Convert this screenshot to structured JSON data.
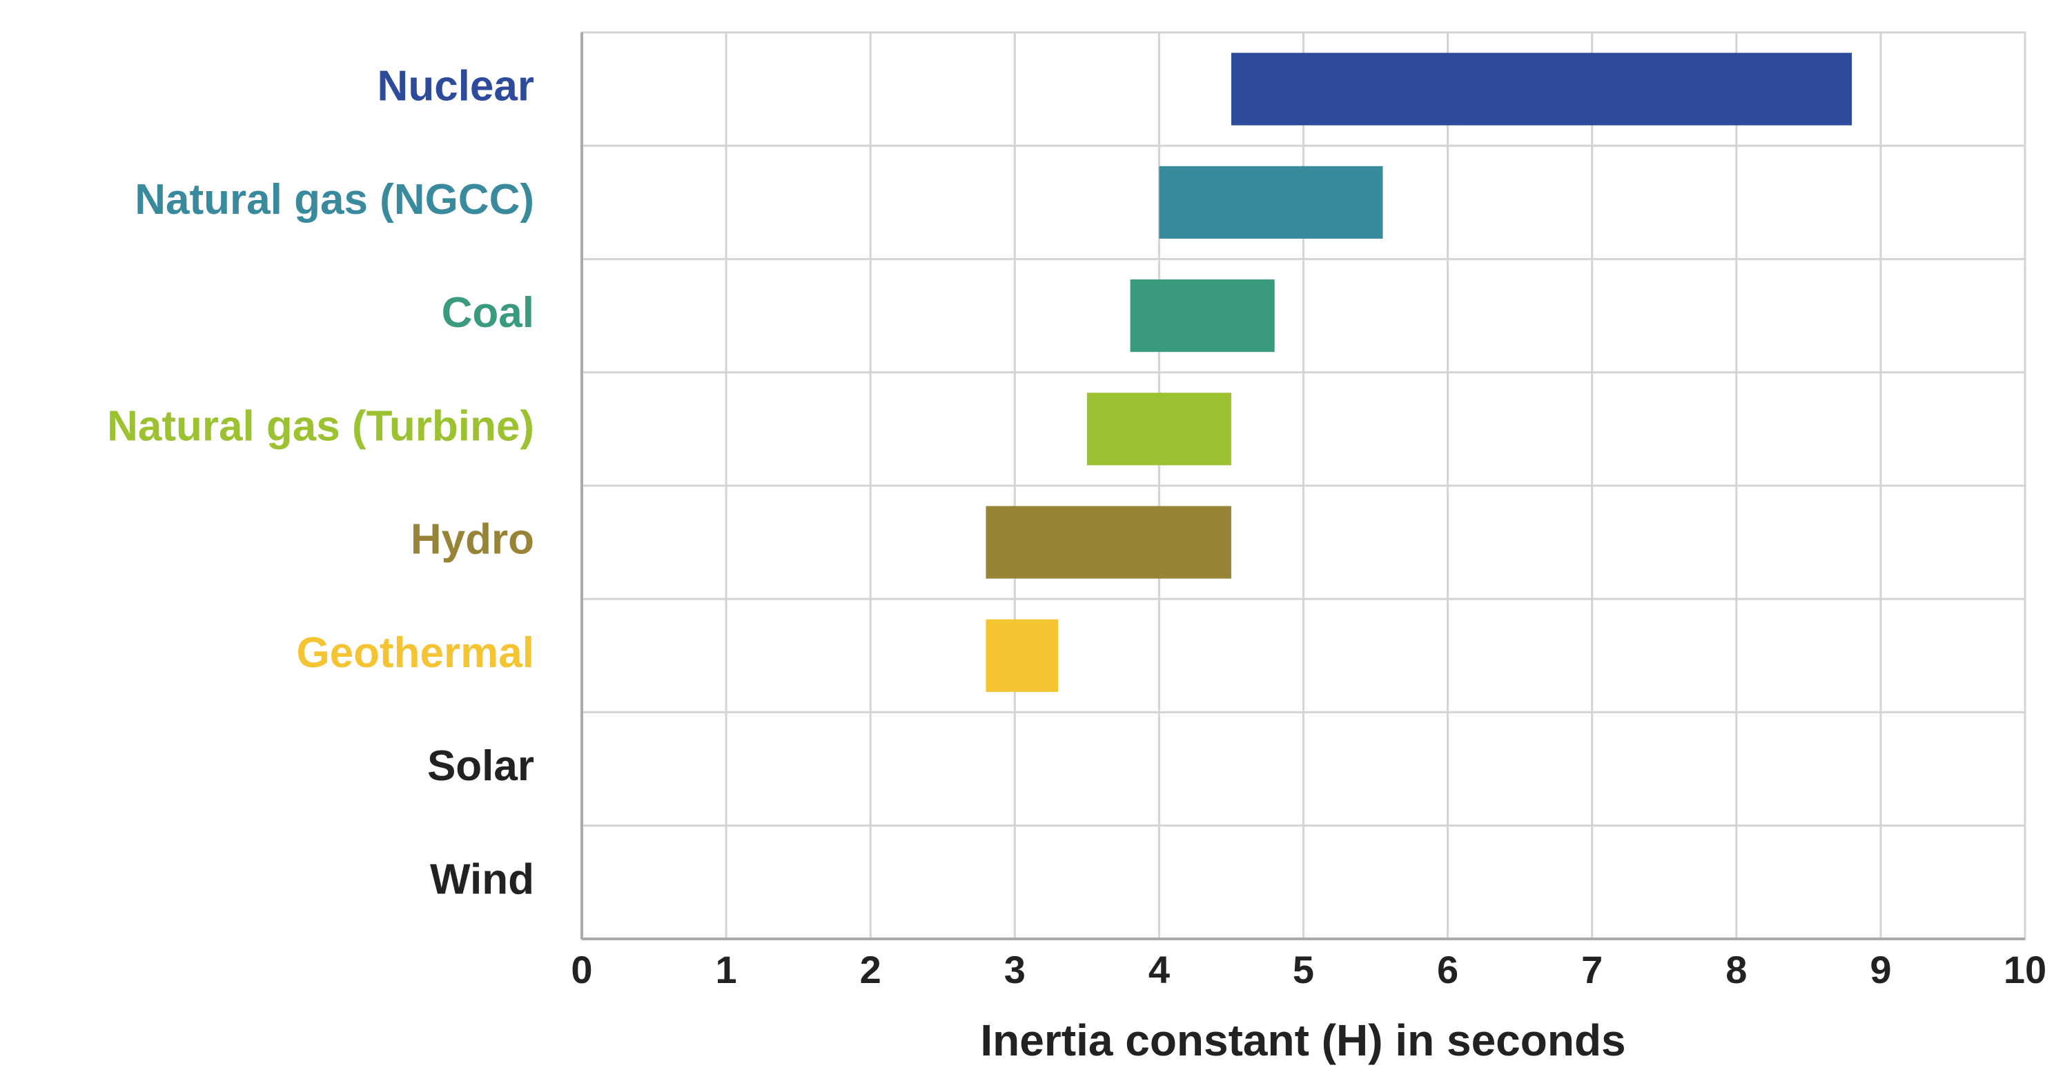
{
  "chart_data": {
    "type": "bar",
    "orientation": "horizontal",
    "x_label": "Inertia constant (H) in seconds",
    "categories": [
      "Nuclear",
      "Natural gas (NGCC)",
      "Coal",
      "Natural gas (Turbine)",
      "Hydro",
      "Geothermal",
      "Solar",
      "Wind"
    ],
    "values": [
      [
        4.5,
        8.8
      ],
      [
        4.0,
        5.55
      ],
      [
        3.8,
        4.8
      ],
      [
        3.5,
        4.5
      ],
      [
        2.8,
        4.5
      ],
      [
        2.8,
        3.3
      ],
      null,
      null
    ],
    "colors": [
      "#2e4a9a",
      "#3a8a9e",
      "#3a9a7e",
      "#9dc231",
      "#978437",
      "#f4c432",
      "#222222",
      "#222222"
    ],
    "xlim": [
      0,
      10
    ],
    "xticks": [
      0,
      1,
      2,
      3,
      4,
      5,
      6,
      7,
      8,
      9,
      10
    ],
    "grid": true
  }
}
